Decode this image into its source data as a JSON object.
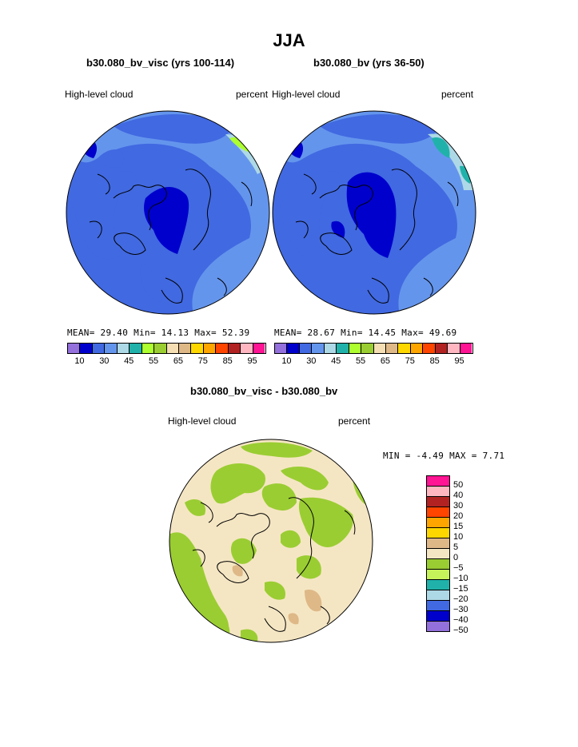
{
  "page": {
    "title": "JJA"
  },
  "panels": [
    {
      "subtitle": "b30.080_bv_visc (yrs 100-114)",
      "left_label": "High-level cloud",
      "right_label": "percent",
      "stats": "MEAN=  29.40  Min=  14.13  Max=  52.39"
    },
    {
      "subtitle": "b30.080_bv (yrs 36-50)",
      "left_label": "High-level cloud",
      "right_label": "percent",
      "stats": "MEAN=  28.67  Min=  14.45  Max=  49.69"
    },
    {
      "subtitle": "b30.080_bv_visc - b30.080_bv",
      "left_label": "High-level cloud",
      "right_label": "percent",
      "stats": "MIN =  -4.49  MAX =   7.71"
    }
  ],
  "colorbar_top": {
    "colors": [
      "#9370db",
      "#0000cd",
      "#4169e1",
      "#6495ed",
      "#add8e6",
      "#20b2aa",
      "#adff2f",
      "#9acd32",
      "#f5deb3",
      "#deb887",
      "#ffd700",
      "#ffa500",
      "#ff4500",
      "#b22222",
      "#ffb6c1",
      "#ff1493"
    ],
    "tick_labels": [
      "10",
      "30",
      "45",
      "55",
      "65",
      "75",
      "85",
      "95"
    ]
  },
  "colorbar_diff": {
    "colors": [
      "#ff1493",
      "#ffb6c1",
      "#b22222",
      "#ff4500",
      "#ffa500",
      "#ffd700",
      "#deb887",
      "#f5e6c3",
      "#9acd32",
      "#c6f25a",
      "#20b2aa",
      "#add8e6",
      "#4169e1",
      "#0000cd",
      "#9370db"
    ],
    "labels": [
      "50",
      "40",
      "30",
      "20",
      "15",
      "10",
      "5",
      "0",
      "−5",
      "−10",
      "−15",
      "−20",
      "−30",
      "−40",
      "−50"
    ]
  },
  "map_colors": {
    "base_blue": "#4169e1",
    "light_blue": "#6495ed",
    "dark_blue": "#0000cd",
    "pale_blue": "#add8e6",
    "teal": "#20b2aa",
    "yellow_green": "#adff2f",
    "diff_base": "#f5e6c3",
    "diff_green": "#9acd32",
    "diff_tan": "#deb887"
  }
}
